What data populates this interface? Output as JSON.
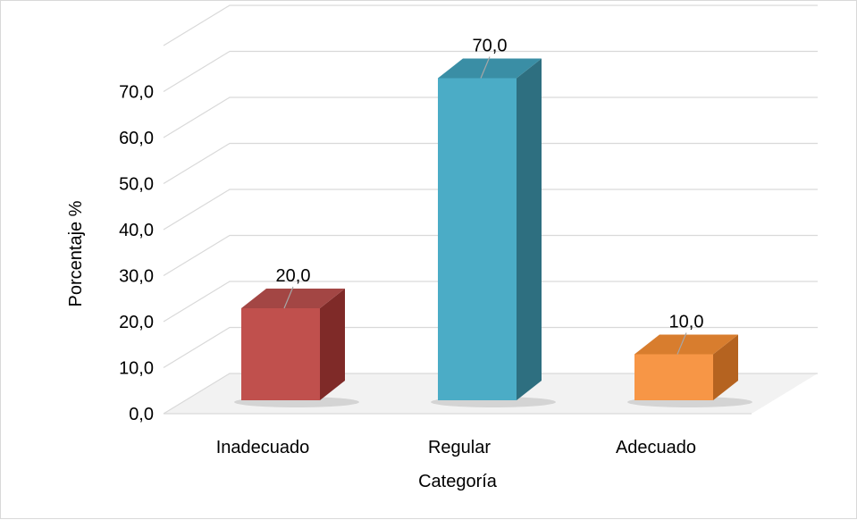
{
  "chart_data": {
    "type": "bar",
    "title": "",
    "xlabel": "Categoría",
    "ylabel": "Porcentaje %",
    "categories": [
      "Inadecuado",
      "Regular",
      "Adecuado"
    ],
    "values": [
      20.0,
      70.0,
      10.0
    ],
    "value_labels": [
      "20,0",
      "70,0",
      "10,0"
    ],
    "ylim": [
      0,
      70
    ],
    "yticks": [
      0,
      10,
      20,
      30,
      40,
      50,
      60,
      70
    ],
    "ytick_labels": [
      "0,0",
      "10,0",
      "20,0",
      "30,0",
      "40,0",
      "50,0",
      "60,0",
      "70,0"
    ],
    "grid": true,
    "legend": "none",
    "bar_colors": [
      "#c0504d",
      "#4bacc6",
      "#f79646"
    ],
    "bar_side_colors": [
      "#7f2a28",
      "#2e6f80",
      "#b56320"
    ],
    "bar_top_colors": [
      "#a34644",
      "#3a8ea5",
      "#d87d2e"
    ]
  }
}
